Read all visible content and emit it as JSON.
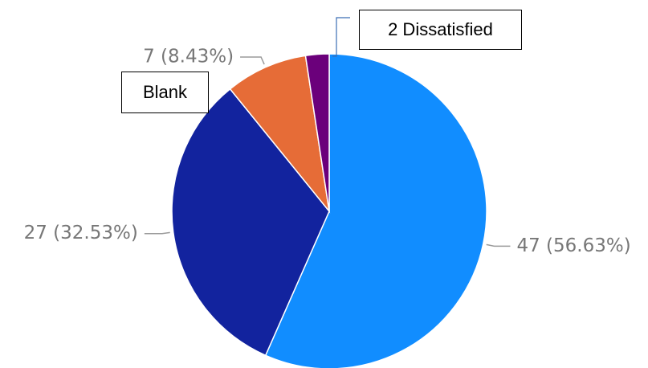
{
  "chart_data": {
    "type": "pie",
    "slices": [
      {
        "value": 47,
        "percent": 56.63,
        "label": "47 (56.63%)",
        "color": "#118DFF"
      },
      {
        "value": 27,
        "percent": 32.53,
        "label": "27 (32.53%)",
        "color": "#12239E"
      },
      {
        "value": 7,
        "percent": 8.43,
        "label": "7 (8.43%)",
        "color": "#E66C37"
      },
      {
        "value": 2,
        "percent": 2.41,
        "label": "",
        "color": "#6B007B"
      }
    ],
    "annotations": [
      {
        "text": "2 Dissatisfied",
        "target_slice": 3
      },
      {
        "text": "Blank",
        "target_slice": 2
      }
    ],
    "legend": "none"
  }
}
